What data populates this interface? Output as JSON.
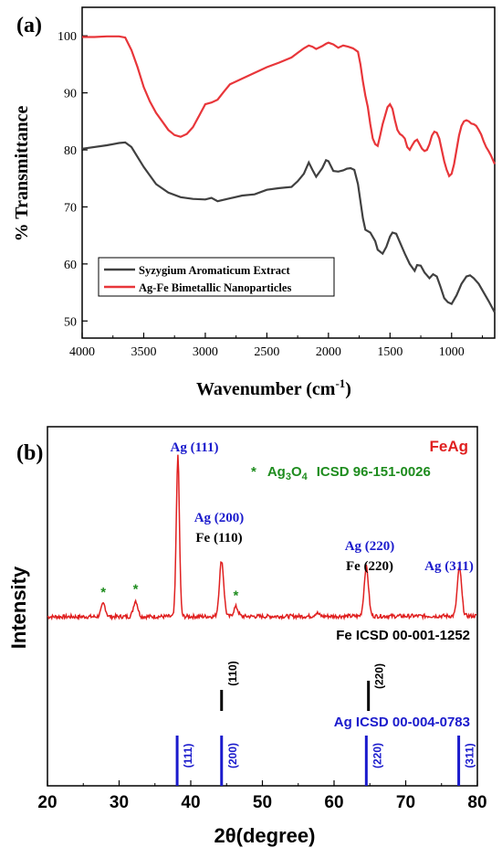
{
  "panel_a": {
    "panel_label": "(a)",
    "xlabel": "Wavenumber (cm",
    "xlabel_sup": "-1",
    "xlabel_close": ")",
    "ylabel": "% Transmittance",
    "xticks": [
      4000,
      3500,
      3000,
      2500,
      2000,
      1500,
      1000
    ],
    "yticks": [
      50,
      60,
      70,
      80,
      90,
      100
    ],
    "legend": [
      "Syzygium Aromaticum Extract",
      "Ag-Fe Bimetallic Nanoparticles"
    ]
  },
  "panel_b": {
    "panel_label": "(b)",
    "xlabel": "2θ(degree)",
    "ylabel": "Intensity",
    "xticks": [
      20,
      30,
      40,
      50,
      60,
      70,
      80
    ],
    "sample_label": "FeAg",
    "star_text": "*",
    "ag3o4_main": "Ag",
    "ag3o4_sub3": "3",
    "ag3o4_o": "O",
    "ag3o4_sub4": "4",
    "ag3o4_icsd": "ICSD 96-151-0026",
    "peak_labels": {
      "ag111": "Ag (111)",
      "ag200": "Ag (200)",
      "fe110": "Fe (110)",
      "ag220": "Ag (220)",
      "fe220": "Fe (220)",
      "ag311": "Ag (311)"
    },
    "fe_ref_label": "Fe ICSD 00-001-1252",
    "ag_ref_label": "Ag ICSD 00-004-0783",
    "fe_ref_hkl": [
      "(110)",
      "(220)"
    ],
    "ag_ref_hkl": [
      "(111)",
      "(200)",
      "(220)",
      "(311)"
    ]
  },
  "colors": {
    "extract": "#404040",
    "nanoparticles": "#e8363a",
    "xrd": "#e02020",
    "ag_blue": "#1a1acc",
    "ag3o4_green": "#1e8c1e",
    "fe_black": "#000000"
  },
  "chart_data": [
    {
      "type": "line",
      "title": "",
      "xlabel": "Wavenumber (cm-1)",
      "ylabel": "% Transmittance",
      "xlim": [
        4000,
        650
      ],
      "ylim": [
        47,
        105
      ],
      "legend_position": "bottom-left",
      "series": [
        {
          "name": "Syzygium Aromaticum Extract",
          "x": [
            4000,
            3800,
            3700,
            3650,
            3600,
            3500,
            3400,
            3300,
            3200,
            3100,
            3000,
            2950,
            2900,
            2800,
            2700,
            2600,
            2500,
            2400,
            2300,
            2250,
            2200,
            2160,
            2130,
            2100,
            2050,
            2020,
            2000,
            1960,
            1920,
            1880,
            1850,
            1820,
            1790,
            1760,
            1720,
            1700,
            1660,
            1620,
            1600,
            1560,
            1530,
            1500,
            1480,
            1450,
            1420,
            1380,
            1340,
            1300,
            1280,
            1250,
            1220,
            1200,
            1180,
            1150,
            1120,
            1090,
            1060,
            1030,
            1000,
            960,
            920,
            880,
            850,
            820,
            780,
            740,
            700,
            650
          ],
          "y": [
            80.2,
            80.8,
            81.2,
            81.3,
            80.5,
            77.0,
            74.0,
            72.5,
            71.7,
            71.4,
            71.3,
            71.6,
            71.0,
            71.5,
            72.0,
            72.2,
            73.0,
            73.3,
            73.5,
            74.5,
            75.8,
            77.8,
            76.5,
            75.3,
            76.8,
            78.2,
            78.0,
            76.3,
            76.2,
            76.4,
            76.7,
            76.8,
            76.5,
            74.0,
            68.0,
            66.0,
            65.5,
            64.0,
            62.5,
            61.8,
            63.0,
            64.8,
            65.5,
            65.3,
            63.8,
            61.8,
            60.0,
            58.8,
            59.8,
            59.7,
            58.5,
            58.0,
            57.5,
            58.2,
            57.8,
            56.0,
            54.0,
            53.3,
            53.0,
            54.5,
            56.5,
            57.8,
            58.0,
            57.5,
            56.5,
            55.0,
            53.5,
            51.5
          ]
        },
        {
          "name": "Ag-Fe Bimetallic Nanoparticles",
          "x": [
            4000,
            3900,
            3800,
            3700,
            3650,
            3600,
            3550,
            3500,
            3450,
            3400,
            3350,
            3300,
            3250,
            3200,
            3150,
            3100,
            3050,
            3000,
            2950,
            2900,
            2850,
            2800,
            2700,
            2600,
            2500,
            2400,
            2300,
            2250,
            2200,
            2160,
            2130,
            2100,
            2050,
            2020,
            2000,
            1960,
            1920,
            1880,
            1840,
            1800,
            1760,
            1740,
            1720,
            1700,
            1680,
            1660,
            1640,
            1620,
            1600,
            1580,
            1560,
            1540,
            1520,
            1500,
            1480,
            1460,
            1440,
            1420,
            1400,
            1380,
            1360,
            1340,
            1320,
            1300,
            1280,
            1260,
            1240,
            1220,
            1200,
            1180,
            1160,
            1140,
            1120,
            1100,
            1080,
            1060,
            1040,
            1030,
            1020,
            1000,
            980,
            960,
            940,
            920,
            900,
            880,
            860,
            840,
            820,
            800,
            780,
            760,
            740,
            720,
            700,
            680,
            650
          ],
          "y": [
            99.8,
            99.8,
            99.9,
            99.9,
            99.7,
            97.5,
            94.5,
            91.0,
            88.5,
            86.5,
            85.0,
            83.5,
            82.6,
            82.3,
            82.8,
            84.0,
            86.0,
            88.0,
            88.3,
            88.8,
            90.2,
            91.5,
            92.5,
            93.5,
            94.5,
            95.3,
            96.2,
            97.0,
            97.8,
            98.3,
            98.1,
            97.7,
            98.2,
            98.6,
            98.8,
            98.5,
            97.9,
            98.3,
            98.1,
            97.8,
            97.2,
            95.0,
            92.0,
            89.5,
            87.5,
            84.5,
            82.0,
            81.0,
            80.7,
            82.5,
            84.5,
            86.0,
            87.5,
            88.0,
            87.2,
            85.2,
            83.5,
            82.8,
            82.5,
            82.0,
            80.5,
            80.0,
            80.8,
            81.5,
            81.8,
            81.0,
            80.2,
            79.8,
            80.0,
            81.0,
            82.5,
            83.2,
            83.0,
            82.0,
            80.0,
            78.0,
            76.5,
            76.0,
            75.4,
            75.8,
            77.5,
            80.0,
            82.5,
            84.2,
            85.0,
            85.2,
            85.0,
            84.6,
            84.5,
            84.2,
            83.5,
            82.7,
            81.5,
            80.5,
            79.8,
            79.0,
            77.5
          ]
        }
      ]
    },
    {
      "type": "line",
      "title": "FeAg",
      "xlabel": "2θ(degree)",
      "ylabel": "Intensity",
      "xlim": [
        20,
        80
      ],
      "legend_position": "top-right",
      "series": [
        {
          "name": "FeAg",
          "peaks": [
            {
              "x": 27.8,
              "intensity": 0.08,
              "label": "*"
            },
            {
              "x": 32.3,
              "intensity": 0.1,
              "label": "*"
            },
            {
              "x": 38.2,
              "intensity": 1.0,
              "label": "Ag (111)"
            },
            {
              "x": 44.3,
              "intensity": 0.35,
              "label": "Ag (200) / Fe (110)"
            },
            {
              "x": 46.3,
              "intensity": 0.06,
              "label": "*"
            },
            {
              "x": 57.6,
              "intensity": 0.02,
              "label": ""
            },
            {
              "x": 64.5,
              "intensity": 0.31,
              "label": "Ag (220) / Fe (220)"
            },
            {
              "x": 77.5,
              "intensity": 0.3,
              "label": "Ag (311)"
            }
          ]
        }
      ],
      "reference_lines": [
        {
          "name": "Fe ICSD 00-001-1252",
          "positions": [
            44.3,
            64.8
          ],
          "hkl": [
            "(110)",
            "(220)"
          ]
        },
        {
          "name": "Ag ICSD 00-004-0783",
          "positions": [
            38.1,
            44.3,
            64.5,
            77.4
          ],
          "hkl": [
            "(111)",
            "(200)",
            "(220)",
            "(311)"
          ]
        }
      ]
    }
  ]
}
